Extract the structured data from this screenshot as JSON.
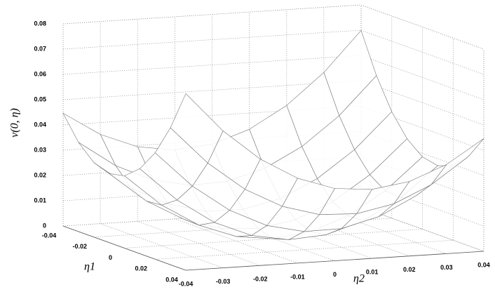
{
  "chart_data": {
    "type": "surface",
    "zlabel": "v(0, η)",
    "xlabel": "η1",
    "ylabel": "η2",
    "x": [
      -0.04,
      -0.03,
      -0.02,
      -0.01,
      0,
      0.01,
      0.02,
      0.03,
      0.04
    ],
    "y": [
      -0.04,
      -0.03,
      -0.02,
      -0.01,
      0,
      0.01,
      0.02,
      0.03,
      0.04
    ],
    "z": [
      [
        0.0446,
        0.0353,
        0.0295,
        0.0273,
        0.0286,
        0.0336,
        0.0421,
        0.0542,
        0.0699
      ],
      [
        0.0353,
        0.0251,
        0.0185,
        0.0155,
        0.0161,
        0.0203,
        0.028,
        0.0393,
        0.0542
      ],
      [
        0.0295,
        0.0185,
        0.0112,
        0.0074,
        0.0072,
        0.0105,
        0.0175,
        0.028,
        0.0421
      ],
      [
        0.0273,
        0.0155,
        0.0074,
        0.0028,
        0.0018,
        0.0044,
        0.0105,
        0.0203,
        0.0336
      ],
      [
        0.0286,
        0.0161,
        0.0072,
        0.0018,
        0,
        0.0018,
        0.0072,
        0.0161,
        0.0286
      ],
      [
        0.0336,
        0.0203,
        0.0105,
        0.0044,
        0.0018,
        0.0028,
        0.0074,
        0.0155,
        0.0273
      ],
      [
        0.0421,
        0.028,
        0.0175,
        0.0105,
        0.0072,
        0.0074,
        0.0112,
        0.0185,
        0.0295
      ],
      [
        0.0542,
        0.0393,
        0.028,
        0.0203,
        0.0161,
        0.0155,
        0.0185,
        0.0251,
        0.0353
      ],
      [
        0.0699,
        0.0542,
        0.0421,
        0.0336,
        0.0286,
        0.0273,
        0.0295,
        0.0353,
        0.0446
      ]
    ],
    "color": "#777777",
    "xlim": [
      -0.04,
      0.04
    ],
    "xticks": [
      -0.04,
      -0.02,
      0,
      0.02,
      0.04
    ],
    "ylim": [
      -0.04,
      0.04
    ],
    "yticks": [
      -0.04,
      -0.03,
      -0.02,
      -0.01,
      0,
      0.01,
      0.02,
      0.03,
      0.04
    ],
    "zlim": [
      0,
      0.08
    ],
    "zticks": [
      0,
      0.01,
      0.02,
      0.03,
      0.04,
      0.05,
      0.06,
      0.07,
      0.08
    ],
    "grid": true
  }
}
